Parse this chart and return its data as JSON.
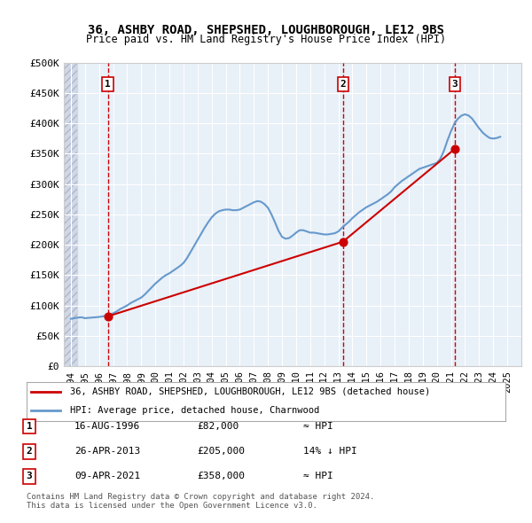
{
  "title": "36, ASHBY ROAD, SHEPSHED, LOUGHBOROUGH, LE12 9BS",
  "subtitle": "Price paid vs. HM Land Registry's House Price Index (HPI)",
  "xlim": [
    1993.5,
    2026.0
  ],
  "ylim": [
    0,
    500000
  ],
  "yticks": [
    0,
    50000,
    100000,
    150000,
    200000,
    250000,
    300000,
    350000,
    400000,
    450000,
    500000
  ],
  "ytick_labels": [
    "£0",
    "£50K",
    "£100K",
    "£150K",
    "£200K",
    "£250K",
    "£300K",
    "£350K",
    "£400K",
    "£450K",
    "£500K"
  ],
  "xticks": [
    1994,
    1995,
    1996,
    1997,
    1998,
    1999,
    2000,
    2001,
    2002,
    2003,
    2004,
    2005,
    2006,
    2007,
    2008,
    2009,
    2010,
    2011,
    2012,
    2013,
    2014,
    2015,
    2016,
    2017,
    2018,
    2019,
    2020,
    2021,
    2022,
    2023,
    2024,
    2025
  ],
  "hpi_years": [
    1994.0,
    1994.25,
    1994.5,
    1994.75,
    1995.0,
    1995.25,
    1995.5,
    1995.75,
    1996.0,
    1996.25,
    1996.5,
    1996.75,
    1997.0,
    1997.25,
    1997.5,
    1997.75,
    1998.0,
    1998.25,
    1998.5,
    1998.75,
    1999.0,
    1999.25,
    1999.5,
    1999.75,
    2000.0,
    2000.25,
    2000.5,
    2000.75,
    2001.0,
    2001.25,
    2001.5,
    2001.75,
    2002.0,
    2002.25,
    2002.5,
    2002.75,
    2003.0,
    2003.25,
    2003.5,
    2003.75,
    2004.0,
    2004.25,
    2004.5,
    2004.75,
    2005.0,
    2005.25,
    2005.5,
    2005.75,
    2006.0,
    2006.25,
    2006.5,
    2006.75,
    2007.0,
    2007.25,
    2007.5,
    2007.75,
    2008.0,
    2008.25,
    2008.5,
    2008.75,
    2009.0,
    2009.25,
    2009.5,
    2009.75,
    2010.0,
    2010.25,
    2010.5,
    2010.75,
    2011.0,
    2011.25,
    2011.5,
    2011.75,
    2012.0,
    2012.25,
    2012.5,
    2012.75,
    2013.0,
    2013.25,
    2013.5,
    2013.75,
    2014.0,
    2014.25,
    2014.5,
    2014.75,
    2015.0,
    2015.25,
    2015.5,
    2015.75,
    2016.0,
    2016.25,
    2016.5,
    2016.75,
    2017.0,
    2017.25,
    2017.5,
    2017.75,
    2018.0,
    2018.25,
    2018.5,
    2018.75,
    2019.0,
    2019.25,
    2019.5,
    2019.75,
    2020.0,
    2020.25,
    2020.5,
    2020.75,
    2021.0,
    2021.25,
    2021.5,
    2021.75,
    2022.0,
    2022.25,
    2022.5,
    2022.75,
    2023.0,
    2023.25,
    2023.5,
    2023.75,
    2024.0,
    2024.25,
    2024.5
  ],
  "hpi_values": [
    78000,
    79000,
    80000,
    80500,
    79000,
    79500,
    80000,
    80500,
    81000,
    82000,
    83000,
    85000,
    87000,
    90000,
    94000,
    97000,
    100000,
    104000,
    107000,
    110000,
    113000,
    118000,
    124000,
    130000,
    136000,
    141000,
    146000,
    150000,
    153000,
    157000,
    161000,
    165000,
    170000,
    178000,
    188000,
    198000,
    208000,
    218000,
    228000,
    237000,
    245000,
    251000,
    255000,
    257000,
    258000,
    258000,
    257000,
    257000,
    258000,
    261000,
    264000,
    267000,
    270000,
    272000,
    271000,
    267000,
    261000,
    250000,
    237000,
    223000,
    213000,
    210000,
    211000,
    215000,
    220000,
    224000,
    224000,
    222000,
    220000,
    220000,
    219000,
    218000,
    217000,
    217000,
    218000,
    219000,
    222000,
    228000,
    233000,
    238000,
    244000,
    249000,
    254000,
    258000,
    262000,
    265000,
    268000,
    271000,
    275000,
    279000,
    283000,
    288000,
    295000,
    300000,
    305000,
    309000,
    313000,
    317000,
    321000,
    325000,
    327000,
    329000,
    331000,
    333000,
    335000,
    342000,
    355000,
    372000,
    387000,
    400000,
    408000,
    413000,
    415000,
    413000,
    408000,
    400000,
    392000,
    385000,
    380000,
    376000,
    375000,
    376000,
    378000
  ],
  "price_years": [
    1996.62,
    2013.32,
    2021.27
  ],
  "price_values": [
    82000,
    205000,
    358000
  ],
  "sale_labels": [
    "1",
    "2",
    "3"
  ],
  "vline_years": [
    1996.62,
    2013.32,
    2021.27
  ],
  "legend_line1": "36, ASHBY ROAD, SHEPSHED, LOUGHBOROUGH, LE12 9BS (detached house)",
  "legend_line2": "HPI: Average price, detached house, Charnwood",
  "table_data": [
    [
      "1",
      "16-AUG-1996",
      "£82,000",
      "≈ HPI"
    ],
    [
      "2",
      "26-APR-2013",
      "£205,000",
      "14% ↓ HPI"
    ],
    [
      "3",
      "09-APR-2021",
      "£358,000",
      "≈ HPI"
    ]
  ],
  "footer": "Contains HM Land Registry data © Crown copyright and database right 2024.\nThis data is licensed under the Open Government Licence v3.0.",
  "price_line_color": "#cc0000",
  "hpi_line_color": "#6699cc",
  "vline_color": "#cc0000",
  "bg_plot_color": "#e8f0f8",
  "bg_hatch_color": "#d0d8e8",
  "grid_color": "#ffffff",
  "label_box_color": "#cc0000"
}
